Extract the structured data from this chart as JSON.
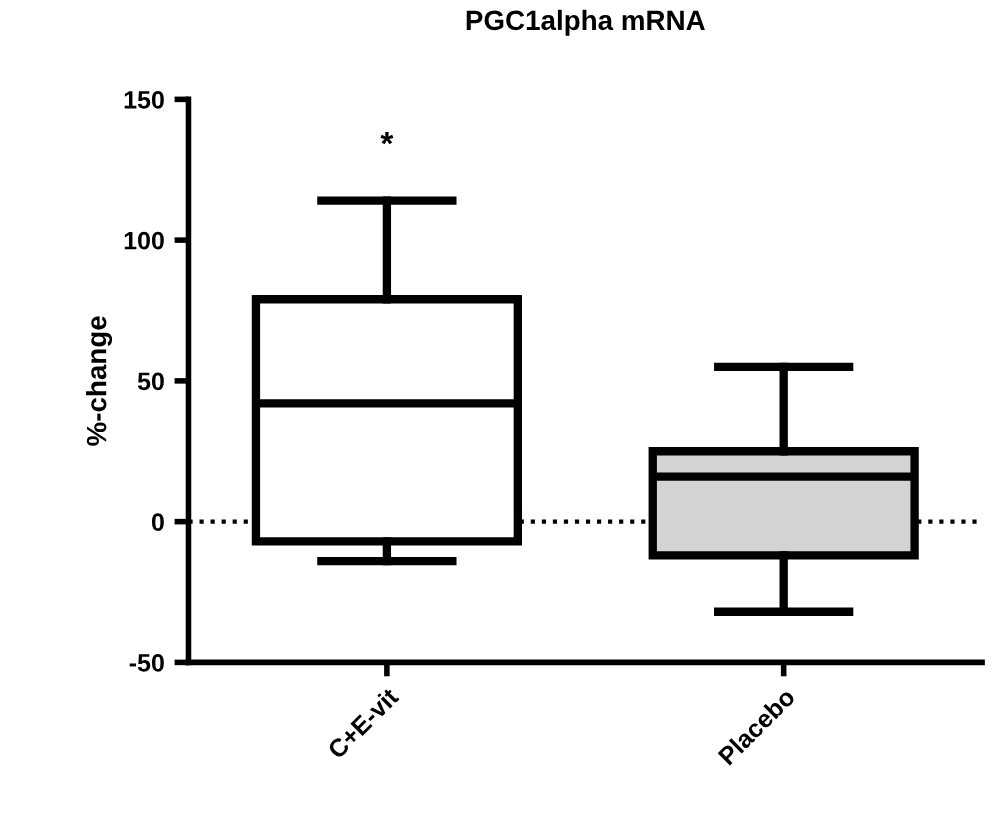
{
  "chart_data": {
    "type": "box",
    "title": "PGC1alpha mRNA",
    "ylabel": "%-change",
    "categories": [
      "C+E-vit",
      "Placebo"
    ],
    "boxes": [
      {
        "low": -14,
        "q1": -7,
        "median": 42,
        "q3": 79,
        "high": 114
      },
      {
        "low": -32,
        "q1": -12,
        "median": 16,
        "q3": 25,
        "high": 55
      }
    ],
    "colors": [
      "#ffffff",
      "#d3d3d3"
    ],
    "ylim": [
      -50,
      150
    ],
    "yticks": [
      -50,
      0,
      50,
      100,
      150
    ],
    "ref_lines": [
      {
        "axis": "y",
        "value": 0,
        "line_style": "dotted",
        "color": "#000000"
      }
    ],
    "annotations": [
      "*"
    ],
    "grid": false,
    "legend": false
  }
}
